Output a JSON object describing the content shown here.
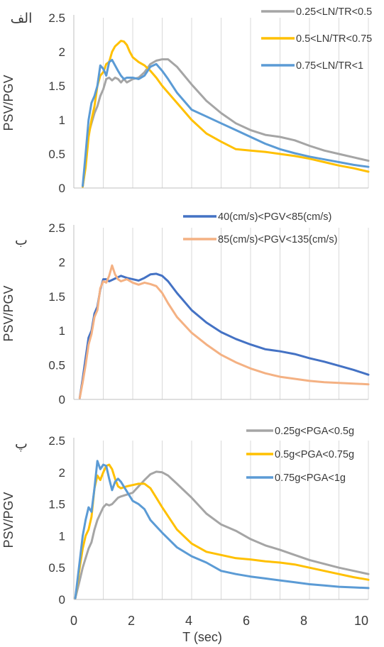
{
  "figure": {
    "xlabel": "T (sec)",
    "x_ticks": [
      "0",
      "2",
      "4",
      "6",
      "8",
      "10"
    ],
    "y_ticks": [
      "0",
      "0.5",
      "1",
      "1.5",
      "2",
      "2.5"
    ]
  },
  "chart_data": [
    {
      "type": "line",
      "panel_label": "الف",
      "ylabel": "PSV/PGV",
      "xlim": [
        0,
        10
      ],
      "ylim": [
        0,
        2.5
      ],
      "grid": "vertical",
      "legend": "top-right",
      "series": [
        {
          "name": "0.25<LN/TR<0.5",
          "color": "#a5a5a5",
          "x": [
            0.3,
            0.4,
            0.5,
            0.6,
            0.7,
            0.8,
            0.9,
            1.0,
            1.1,
            1.2,
            1.3,
            1.4,
            1.5,
            1.6,
            1.7,
            1.8,
            2.0,
            2.2,
            2.4,
            2.6,
            2.8,
            3.0,
            3.2,
            3.5,
            4.0,
            4.5,
            5.0,
            5.5,
            6.0,
            6.5,
            7.0,
            7.5,
            8.0,
            8.5,
            9.0,
            9.5,
            10.0
          ],
          "y": [
            0.02,
            0.35,
            0.8,
            0.95,
            1.1,
            1.2,
            1.35,
            1.45,
            1.6,
            1.62,
            1.58,
            1.62,
            1.6,
            1.55,
            1.6,
            1.55,
            1.6,
            1.62,
            1.7,
            1.82,
            1.87,
            1.89,
            1.89,
            1.78,
            1.52,
            1.28,
            1.1,
            0.95,
            0.85,
            0.78,
            0.75,
            0.7,
            0.62,
            0.55,
            0.5,
            0.45,
            0.4
          ]
        },
        {
          "name": "0.5<LN/TR<0.75",
          "color": "#ffc000",
          "x": [
            0.3,
            0.4,
            0.5,
            0.6,
            0.7,
            0.8,
            0.9,
            1.0,
            1.1,
            1.2,
            1.3,
            1.4,
            1.5,
            1.6,
            1.7,
            1.8,
            1.9,
            2.0,
            2.2,
            2.4,
            2.6,
            2.8,
            3.0,
            3.5,
            4.0,
            4.5,
            5.0,
            5.5,
            6.0,
            6.5,
            7.0,
            7.5,
            8.0,
            8.5,
            9.0,
            9.5,
            10.0
          ],
          "y": [
            0.02,
            0.3,
            0.75,
            1.0,
            1.2,
            1.5,
            1.65,
            1.7,
            1.82,
            1.85,
            2.0,
            2.08,
            2.12,
            2.16,
            2.15,
            2.1,
            2.0,
            1.92,
            1.85,
            1.8,
            1.72,
            1.62,
            1.5,
            1.25,
            1.0,
            0.8,
            0.68,
            0.57,
            0.55,
            0.53,
            0.5,
            0.47,
            0.43,
            0.38,
            0.33,
            0.29,
            0.24
          ]
        },
        {
          "name": "0.75<LN/TR<1",
          "color": "#5b9bd5",
          "x": [
            0.3,
            0.4,
            0.5,
            0.6,
            0.7,
            0.8,
            0.9,
            1.0,
            1.1,
            1.2,
            1.3,
            1.4,
            1.5,
            1.6,
            1.7,
            1.8,
            2.0,
            2.2,
            2.4,
            2.6,
            2.8,
            3.0,
            3.2,
            3.5,
            4.0,
            4.5,
            5.0,
            5.5,
            6.0,
            6.5,
            7.0,
            7.5,
            8.0,
            8.5,
            9.0,
            9.5,
            10.0
          ],
          "y": [
            0.03,
            0.5,
            1.0,
            1.25,
            1.35,
            1.5,
            1.8,
            1.75,
            1.65,
            1.85,
            1.88,
            1.8,
            1.72,
            1.65,
            1.6,
            1.62,
            1.62,
            1.6,
            1.65,
            1.78,
            1.82,
            1.72,
            1.6,
            1.4,
            1.15,
            1.05,
            0.95,
            0.85,
            0.75,
            0.65,
            0.57,
            0.51,
            0.46,
            0.42,
            0.38,
            0.34,
            0.31
          ]
        }
      ]
    },
    {
      "type": "line",
      "panel_label": "ب",
      "ylabel": "PSV/PGV",
      "xlim": [
        0,
        10
      ],
      "ylim": [
        0,
        2.5
      ],
      "grid": "vertical",
      "legend": "top-right",
      "series": [
        {
          "name": "40(cm/s)<PGV<85(cm/s)",
          "color": "#4472c4",
          "x": [
            0.2,
            0.3,
            0.4,
            0.5,
            0.6,
            0.7,
            0.8,
            0.9,
            1.0,
            1.1,
            1.2,
            1.3,
            1.4,
            1.5,
            1.6,
            1.8,
            2.0,
            2.2,
            2.4,
            2.6,
            2.8,
            3.0,
            3.2,
            3.5,
            4.0,
            4.5,
            5.0,
            5.5,
            6.0,
            6.5,
            7.0,
            7.5,
            8.0,
            8.5,
            9.0,
            9.5,
            10.0
          ],
          "y": [
            0.02,
            0.3,
            0.6,
            0.9,
            1.0,
            1.25,
            1.35,
            1.6,
            1.75,
            1.75,
            1.72,
            1.74,
            1.76,
            1.78,
            1.8,
            1.77,
            1.75,
            1.73,
            1.77,
            1.82,
            1.83,
            1.8,
            1.72,
            1.55,
            1.3,
            1.12,
            0.98,
            0.88,
            0.8,
            0.73,
            0.7,
            0.66,
            0.6,
            0.55,
            0.49,
            0.43,
            0.36
          ]
        },
        {
          "name": "85(cm/s)<PGV<135(cm/s)",
          "color": "#f4b183",
          "x": [
            0.2,
            0.3,
            0.4,
            0.5,
            0.6,
            0.7,
            0.8,
            0.9,
            1.0,
            1.1,
            1.2,
            1.3,
            1.4,
            1.5,
            1.6,
            1.8,
            2.0,
            2.2,
            2.4,
            2.6,
            2.8,
            3.0,
            3.2,
            3.5,
            4.0,
            4.5,
            5.0,
            5.5,
            6.0,
            6.5,
            7.0,
            7.5,
            8.0,
            8.5,
            9.0,
            9.5,
            10.0
          ],
          "y": [
            0.02,
            0.25,
            0.5,
            0.8,
            0.95,
            1.2,
            1.3,
            1.62,
            1.72,
            1.7,
            1.8,
            1.95,
            1.82,
            1.75,
            1.72,
            1.75,
            1.7,
            1.67,
            1.7,
            1.68,
            1.65,
            1.55,
            1.4,
            1.2,
            0.97,
            0.8,
            0.65,
            0.54,
            0.45,
            0.38,
            0.33,
            0.3,
            0.27,
            0.25,
            0.24,
            0.23,
            0.22
          ]
        }
      ]
    },
    {
      "type": "line",
      "panel_label": "پ",
      "ylabel": "PSV/PGV",
      "xlabel": "T (sec)",
      "xlim": [
        0,
        10
      ],
      "ylim": [
        0,
        2.5
      ],
      "grid": "vertical",
      "legend": "top-right",
      "series": [
        {
          "name": "0.25g<PGA<0.5g",
          "color": "#a5a5a5",
          "x": [
            0.05,
            0.2,
            0.3,
            0.4,
            0.5,
            0.6,
            0.7,
            0.8,
            0.9,
            1.0,
            1.1,
            1.2,
            1.3,
            1.4,
            1.5,
            1.6,
            1.8,
            2.0,
            2.2,
            2.4,
            2.6,
            2.8,
            3.0,
            3.2,
            3.5,
            4.0,
            4.5,
            5.0,
            5.5,
            6.0,
            6.5,
            7.0,
            7.5,
            8.0,
            8.5,
            9.0,
            9.5,
            10.0
          ],
          "y": [
            0.02,
            0.3,
            0.5,
            0.65,
            0.8,
            0.9,
            1.1,
            1.25,
            1.35,
            1.45,
            1.5,
            1.48,
            1.5,
            1.55,
            1.6,
            1.62,
            1.65,
            1.68,
            1.78,
            1.88,
            1.97,
            2.01,
            2.0,
            1.95,
            1.82,
            1.6,
            1.35,
            1.18,
            1.08,
            0.95,
            0.85,
            0.78,
            0.7,
            0.62,
            0.56,
            0.5,
            0.45,
            0.4
          ]
        },
        {
          "name": "0.5g<PGA<0.75g",
          "color": "#ffc000",
          "x": [
            0.05,
            0.2,
            0.3,
            0.4,
            0.5,
            0.6,
            0.7,
            0.8,
            0.9,
            1.0,
            1.1,
            1.2,
            1.3,
            1.4,
            1.5,
            1.6,
            1.8,
            2.0,
            2.2,
            2.4,
            2.6,
            2.8,
            3.0,
            3.5,
            4.0,
            4.5,
            5.0,
            5.5,
            6.0,
            6.5,
            7.0,
            7.5,
            8.0,
            8.5,
            9.0,
            9.5,
            10.0
          ],
          "y": [
            0.02,
            0.5,
            0.8,
            1.0,
            1.1,
            1.3,
            1.75,
            1.95,
            1.88,
            2.0,
            2.1,
            2.12,
            2.05,
            1.9,
            1.78,
            1.75,
            1.78,
            1.8,
            1.82,
            1.82,
            1.75,
            1.6,
            1.45,
            1.1,
            0.88,
            0.75,
            0.7,
            0.65,
            0.63,
            0.6,
            0.58,
            0.55,
            0.5,
            0.45,
            0.4,
            0.35,
            0.31
          ]
        },
        {
          "name": "0.75g<PGA<1g",
          "color": "#5b9bd5",
          "x": [
            0.05,
            0.2,
            0.3,
            0.4,
            0.5,
            0.6,
            0.7,
            0.8,
            0.9,
            1.0,
            1.1,
            1.2,
            1.3,
            1.4,
            1.5,
            1.6,
            1.8,
            2.0,
            2.2,
            2.4,
            2.6,
            2.8,
            3.0,
            3.5,
            4.0,
            4.5,
            5.0,
            5.5,
            6.0,
            6.5,
            7.0,
            7.5,
            8.0,
            8.5,
            9.0,
            9.5,
            10.0
          ],
          "y": [
            0.02,
            0.6,
            1.0,
            1.25,
            1.45,
            1.38,
            1.75,
            2.18,
            2.05,
            2.12,
            2.1,
            1.9,
            1.72,
            1.85,
            1.9,
            1.85,
            1.7,
            1.55,
            1.5,
            1.42,
            1.25,
            1.15,
            1.05,
            0.82,
            0.68,
            0.58,
            0.45,
            0.4,
            0.36,
            0.33,
            0.3,
            0.27,
            0.24,
            0.22,
            0.2,
            0.19,
            0.18
          ]
        }
      ]
    }
  ]
}
